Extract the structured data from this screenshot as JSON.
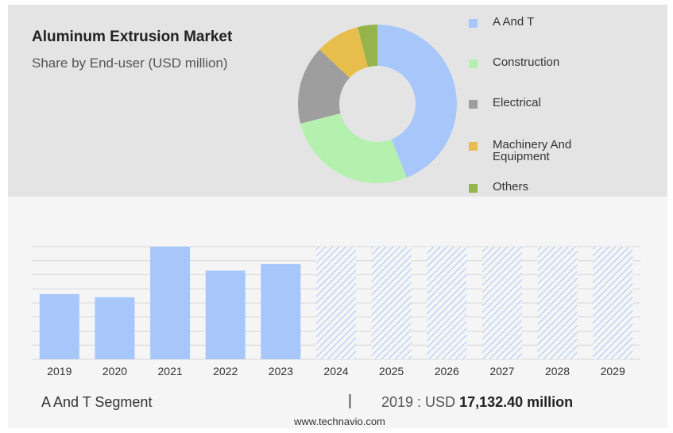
{
  "header": {
    "title": "Aluminum Extrusion Market",
    "subtitle": "Share by End-user (USD million)"
  },
  "colors": {
    "panel_bg": "#e4e4e4",
    "bar_actual": "#a7c7fb",
    "bar_forecast_hatch": "#a7c7fb"
  },
  "chart_data": [
    {
      "type": "pie",
      "variant": "donut",
      "legend_position": "right",
      "slices": [
        {
          "label": "A And T",
          "value": 44.0,
          "color": "#a7c7fb"
        },
        {
          "label": "Construction",
          "value": 27.0,
          "color": "#b4f0ae"
        },
        {
          "label": "Electrical",
          "value": 16.0,
          "color": "#9e9e9e"
        },
        {
          "label": "Machinery And Equipment",
          "value": 9.0,
          "color": "#e7bd4c"
        },
        {
          "label": "Others",
          "value": 4.0,
          "color": "#95b44c"
        }
      ]
    },
    {
      "type": "bar",
      "categories": [
        "2019",
        "2020",
        "2021",
        "2022",
        "2023",
        "2024",
        "2025",
        "2026",
        "2027",
        "2028",
        "2029"
      ],
      "values": [
        17132.4,
        16300,
        29600,
        23300,
        25000,
        null,
        null,
        null,
        null,
        null,
        null
      ],
      "forecast_categories": [
        "2024",
        "2025",
        "2026",
        "2027",
        "2028",
        "2029"
      ],
      "forecast_style": "hatched, full height",
      "grid": true,
      "ylim": [
        0,
        29600
      ]
    }
  ],
  "footer": {
    "segment_label": "A And T Segment",
    "separator": "|",
    "value_prefix": "2019 : USD",
    "value": "17,132.40 million",
    "source": "www.technavio.com"
  }
}
